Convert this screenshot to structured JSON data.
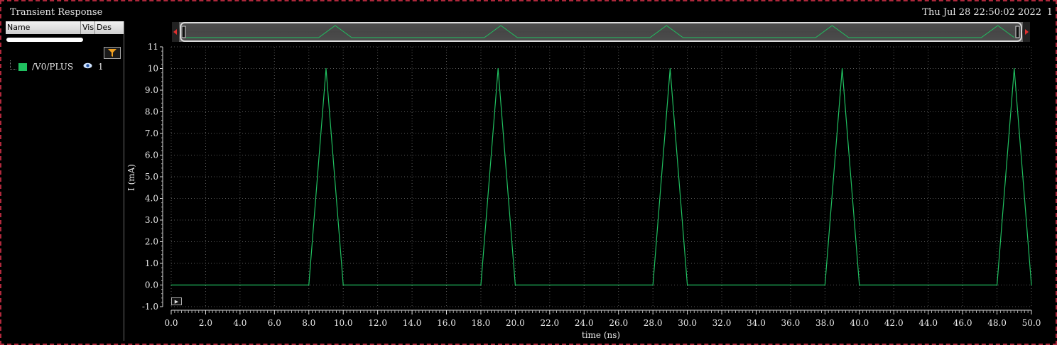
{
  "window": {
    "title": "Transient Response",
    "timestamp": "Thu Jul 28 22:50:02 2022",
    "page_number": "1"
  },
  "browser": {
    "columns": [
      "Name",
      "Vis",
      "Des"
    ],
    "signals": [
      {
        "name": "/V0/PLUS",
        "color": "#20c060",
        "visible_icon": "eye-icon",
        "index": "1"
      }
    ]
  },
  "chart_data": {
    "type": "line",
    "title": "",
    "xlabel": "time (ns)",
    "ylabel": "I (mA)",
    "xlim": [
      0,
      50
    ],
    "ylim": [
      -1,
      11
    ],
    "x_ticks": [
      "0.0",
      "2.0",
      "4.0",
      "6.0",
      "8.0",
      "10.0",
      "12.0",
      "14.0",
      "16.0",
      "18.0",
      "20.0",
      "22.0",
      "24.0",
      "26.0",
      "28.0",
      "30.0",
      "32.0",
      "34.0",
      "36.0",
      "38.0",
      "40.0",
      "42.0",
      "44.0",
      "46.0",
      "48.0",
      "50.0"
    ],
    "y_ticks": [
      "-1.0",
      "0.0",
      "1.0",
      "2.0",
      "3.0",
      "4.0",
      "5.0",
      "6.0",
      "7.0",
      "8.0",
      "9.0",
      "10",
      "11"
    ],
    "grid": true,
    "series": [
      {
        "name": "/V0/PLUS",
        "color": "#20c060",
        "x": [
          0,
          8,
          9,
          10,
          18,
          19,
          20,
          28,
          29,
          30,
          38,
          39,
          40,
          48,
          49,
          50
        ],
        "y": [
          0,
          0,
          10,
          0,
          0,
          10,
          0,
          0,
          10,
          0,
          0,
          10,
          0,
          0,
          10,
          0
        ]
      }
    ]
  }
}
